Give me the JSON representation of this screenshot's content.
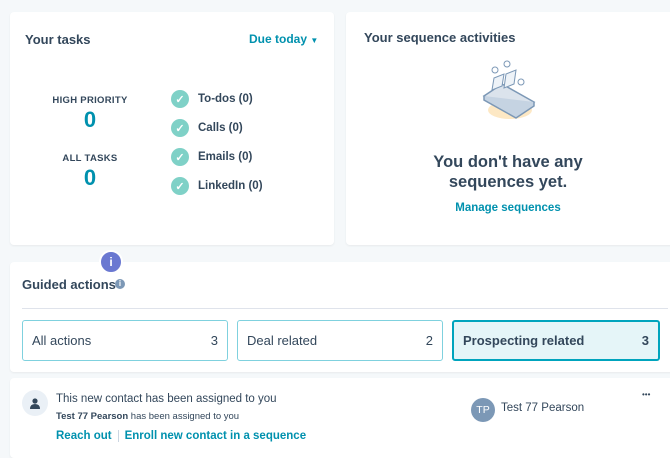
{
  "tasks": {
    "title": "Your tasks",
    "filter": "Due today",
    "high_priority_label": "HIGH PRIORITY",
    "high_priority_value": "0",
    "all_tasks_label": "ALL TASKS",
    "all_tasks_value": "0",
    "items": [
      {
        "label": "To-dos (0)"
      },
      {
        "label": "Calls (0)"
      },
      {
        "label": "Emails (0)"
      },
      {
        "label": "LinkedIn (0)"
      }
    ]
  },
  "sequences": {
    "title": "Your sequence activities",
    "empty_message": "You don't have any sequences yet.",
    "manage_link": "Manage sequences"
  },
  "guided": {
    "title": "Guided actions",
    "badge": "i",
    "tabs": [
      {
        "label": "All actions",
        "count": "3"
      },
      {
        "label": "Deal related",
        "count": "2"
      },
      {
        "label": "Prospecting related",
        "count": "3",
        "selected": true
      }
    ]
  },
  "activity": {
    "title": "This new contact has been assigned to you",
    "contact_name": "Test 77 Pearson",
    "detail": " has been assigned to you",
    "reach_out": "Reach out",
    "enroll": "Enroll new contact in a sequence",
    "avatar_initials": "TP",
    "owner_name": "Test 77 Pearson",
    "more": "•••"
  },
  "colors": {
    "accent": "#0091ae",
    "check": "#7fd1c7",
    "badge": "#6a78d1"
  }
}
